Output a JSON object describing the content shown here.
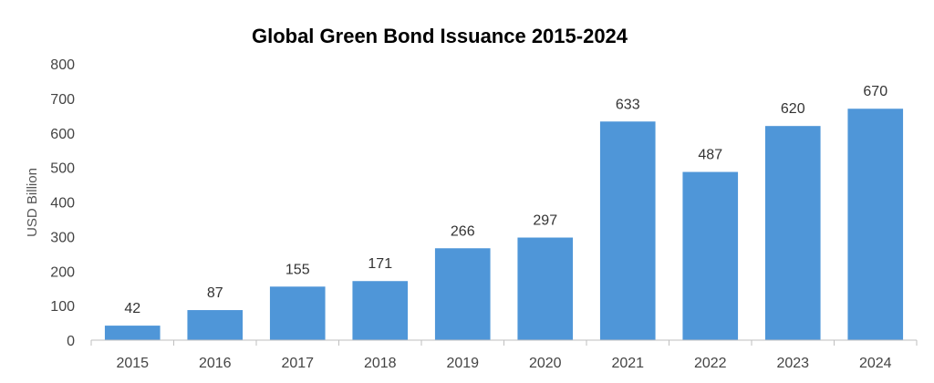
{
  "chart_data": {
    "type": "bar",
    "title": "Global Green Bond Issuance 2015-2024",
    "xlabel": "",
    "ylabel": "USD Billion",
    "categories": [
      "2015",
      "2016",
      "2017",
      "2018",
      "2019",
      "2020",
      "2021",
      "2022",
      "2023",
      "2024"
    ],
    "values": [
      42,
      87,
      155,
      171,
      266,
      297,
      633,
      487,
      620,
      670
    ],
    "data_labels": [
      "42",
      "87",
      "155",
      "171",
      "266",
      "297",
      "633",
      "487",
      "620",
      "670"
    ],
    "ylim": [
      0,
      800
    ],
    "yticks": [
      0,
      100,
      200,
      300,
      400,
      500,
      600,
      700,
      800
    ],
    "ytick_labels": [
      "0",
      "100",
      "200",
      "300",
      "400",
      "500",
      "600",
      "700",
      "800"
    ],
    "grid": false,
    "legend": false,
    "bar_color": "#4f96d8",
    "axis_color": "#bfbfbf"
  }
}
